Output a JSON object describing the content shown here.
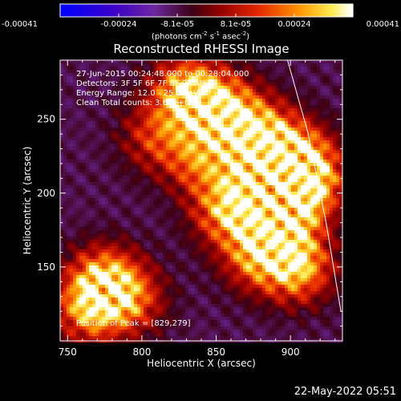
{
  "chart_data": {
    "type": "heatmap",
    "title": "Reconstructed RHESSI Image",
    "xlabel": "Heliocentric X (arcsec)",
    "ylabel": "Heliocentric Y (arcsec)",
    "xlim": [
      745,
      935
    ],
    "ylim": [
      100,
      290
    ],
    "x_ticks": [
      750,
      800,
      850,
      900
    ],
    "y_ticks": [
      150,
      200,
      250
    ],
    "colorbar": {
      "title": "(photons cm-2 s-1 asec-2)",
      "range": [
        -0.00041,
        0.00041
      ],
      "tick_labels": [
        "-0.00041",
        "-0.00024",
        "-8.1e-05",
        "8.1e-05",
        "0.00024",
        "0.00041"
      ]
    },
    "annotations": {
      "time": "27-Jun-2015 00:24:48.000 to 00:28:04.000",
      "detectors": "Detectors: 3F 5F 6F 7F 8F 9F Att 0",
      "energy": "Energy Range: 12.0 - 25.0 keV",
      "clean": "Clean     Total counts: 3.68e+03",
      "peak": "Position of Peak = [829,279]"
    },
    "emission_regions": [
      {
        "x": 830,
        "y": 268,
        "strength": 1.0
      },
      {
        "x": 850,
        "y": 258,
        "strength": 0.9
      },
      {
        "x": 872,
        "y": 245,
        "strength": 0.85
      },
      {
        "x": 895,
        "y": 230,
        "strength": 0.9
      },
      {
        "x": 912,
        "y": 215,
        "strength": 1.0
      },
      {
        "x": 905,
        "y": 195,
        "strength": 0.85
      },
      {
        "x": 878,
        "y": 210,
        "strength": 0.8
      },
      {
        "x": 858,
        "y": 188,
        "strength": 0.9
      },
      {
        "x": 890,
        "y": 175,
        "strength": 0.8
      },
      {
        "x": 905,
        "y": 150,
        "strength": 0.95
      },
      {
        "x": 878,
        "y": 158,
        "strength": 0.75
      },
      {
        "x": 840,
        "y": 222,
        "strength": 0.7
      },
      {
        "x": 810,
        "y": 238,
        "strength": 0.55
      },
      {
        "x": 775,
        "y": 140,
        "strength": 0.95
      },
      {
        "x": 765,
        "y": 122,
        "strength": 0.8
      },
      {
        "x": 792,
        "y": 128,
        "strength": 0.6
      }
    ],
    "limb_curve": {
      "x": [
        898,
        912,
        924,
        934
      ],
      "y": [
        290,
        240,
        180,
        120
      ]
    }
  },
  "timestamp": "22-May-2022 05:51"
}
